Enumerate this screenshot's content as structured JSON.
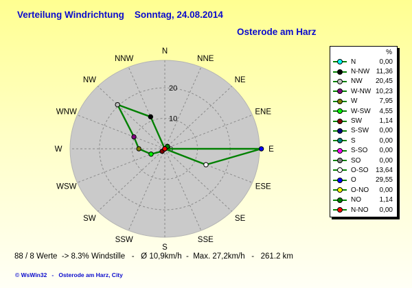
{
  "colors": {
    "background_top": "#ffff91",
    "background_bottom": "#fffff6",
    "title_blue": "#0a0acd",
    "disc_fill": "#cacaca",
    "disc_edge": "#b4b4b4",
    "grid_gray": "#8a8a8a",
    "series_green": "#008000"
  },
  "chart_data": {
    "type": "radar",
    "title": "Verteilung Windrichtung    Sonntag, 24.08.2014",
    "subtitle": "Osterode am Harz",
    "unit": "%",
    "rmax": 29,
    "grid": "dashed",
    "legend_position": "right",
    "legend_header": "%",
    "series_color": "#008000",
    "rings": [
      {
        "value": 20,
        "label": "20"
      },
      {
        "value": 10,
        "label": "10"
      },
      {
        "value": 0,
        "label": "0"
      }
    ],
    "compass_labels_clockwise_from_north": [
      "N",
      "NNE",
      "NE",
      "ENE",
      "E",
      "ESE",
      "SE",
      "SSE",
      "S",
      "SSW",
      "SW",
      "WSW",
      "W",
      "WNW",
      "NW",
      "NNW"
    ],
    "points": [
      {
        "label": "N",
        "deg": 0,
        "value": 0.0,
        "value_text": "0,00",
        "marker_color": "#00FFFF"
      },
      {
        "label": "N-NW",
        "deg": 337.5,
        "value": 11.36,
        "value_text": "11,36",
        "marker_color": "#000000"
      },
      {
        "label": "NW",
        "deg": 315,
        "value": 20.45,
        "value_text": "20,45",
        "marker_color": "#C0C0C0"
      },
      {
        "label": "W-NW",
        "deg": 292.5,
        "value": 10.23,
        "value_text": "10,23",
        "marker_color": "#800080"
      },
      {
        "label": "W",
        "deg": 270,
        "value": 7.95,
        "value_text": "7,95",
        "marker_color": "#808000"
      },
      {
        "label": "W-SW",
        "deg": 247.5,
        "value": 4.55,
        "value_text": "4,55",
        "marker_color": "#00FF00"
      },
      {
        "label": "SW",
        "deg": 225,
        "value": 1.14,
        "value_text": "1,14",
        "marker_color": "#800000"
      },
      {
        "label": "S-SW",
        "deg": 202.5,
        "value": 0.0,
        "value_text": "0,00",
        "marker_color": "#000080"
      },
      {
        "label": "S",
        "deg": 180,
        "value": 0.0,
        "value_text": "0,00",
        "marker_color": "#008080"
      },
      {
        "label": "S-SO",
        "deg": 157.5,
        "value": 0.0,
        "value_text": "0,00",
        "marker_color": "#FF00FF"
      },
      {
        "label": "SO",
        "deg": 135,
        "value": 0.0,
        "value_text": "0,00",
        "marker_color": "#808080"
      },
      {
        "label": "O-SO",
        "deg": 112.5,
        "value": 13.64,
        "value_text": "13,64",
        "marker_color": "#FFFFFF"
      },
      {
        "label": "O",
        "deg": 90,
        "value": 29.55,
        "value_text": "29,55",
        "marker_color": "#0000FF"
      },
      {
        "label": "O-NO",
        "deg": 67.5,
        "value": 0.0,
        "value_text": "0,00",
        "marker_color": "#FFFF00"
      },
      {
        "label": "NO",
        "deg": 45,
        "value": 1.14,
        "value_text": "1,14",
        "marker_color": "#008000"
      },
      {
        "label": "N-NO",
        "deg": 22.5,
        "value": 0.0,
        "value_text": "0,00",
        "marker_color": "#FF0000"
      }
    ]
  },
  "footer": {
    "stats": "88 / 8 Werte  -> 8.3% Windstille   -   Ø 10,9km/h  -  Max. 27,2km/h   -   261.2 km",
    "copyright": "© WsWin32   -   Osterode am Harz, City"
  }
}
